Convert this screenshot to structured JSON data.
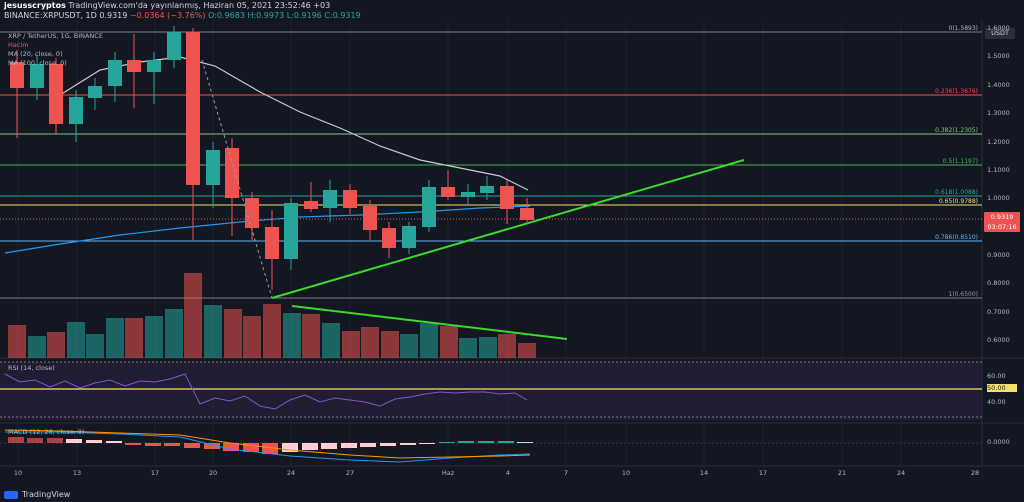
{
  "header": {
    "publisher": "jesusscryptos",
    "published_text": "TradingView.com'da yayınlanmış, Haziran 05, 2021 23:52:46 +03",
    "symbol": "BINANCE:XRPUSDT, 1D",
    "last": "0.9319",
    "change": "−0.0364 (−3.76%)",
    "open": "O:0.9683",
    "high": "H:0.9973",
    "low": "L:0.9196",
    "close": "C:0.9319"
  },
  "legend": {
    "pair": "XRP / TetherUS, 1G, BINANCE",
    "volume": "Hacim",
    "ma20": "MA (20, close, 0)",
    "ma100": "MA (100, close, 0)",
    "rsi": "RSI (14, close)",
    "macd": "MACD (12, 26, close, 9)"
  },
  "price_axis": {
    "currency": "USDT",
    "ticks": [
      "1.6000",
      "1.5000",
      "1.4000",
      "1.3000",
      "1.2000",
      "1.1000",
      "1.0000",
      "0.9000",
      "0.8000",
      "0.7000",
      "0.6000",
      "0.5000"
    ],
    "last_price": "0.9319",
    "countdown": "03:07:16"
  },
  "fib_levels": [
    {
      "label": "0(1.5893)",
      "color": "#b2b5be"
    },
    {
      "label": "0.236(1.3676)",
      "color": "#ef5350"
    },
    {
      "label": "0.382(1.2305)",
      "color": "#81c784"
    },
    {
      "label": "0.5(1.1197)",
      "color": "#4caf50"
    },
    {
      "label": "0.618(1.0088)",
      "color": "#26a69a"
    },
    {
      "label": "0.65(0.9788)",
      "color": "#f5e16b"
    },
    {
      "label": "0.786(0.8510)",
      "color": "#64b5f6"
    },
    {
      "label": "1(0.6500)",
      "color": "#9598a1"
    }
  ],
  "rsi_axis": {
    "upper": "60.00",
    "mid": "50.00",
    "lower": "40.00"
  },
  "macd_axis": {
    "zero": "0.0000"
  },
  "time_axis": [
    "10",
    "13",
    "17",
    "20",
    "24",
    "27",
    "Haz",
    "4",
    "7",
    "10",
    "14",
    "17",
    "21",
    "24",
    "28"
  ],
  "brand": "TradingView",
  "colors": {
    "up": "#26a69a",
    "down": "#ef5350",
    "trend": "#3dd92b",
    "ma100": "#2196f3",
    "ma20": "#c9c9d1",
    "rsi": "#7e57c2"
  }
}
